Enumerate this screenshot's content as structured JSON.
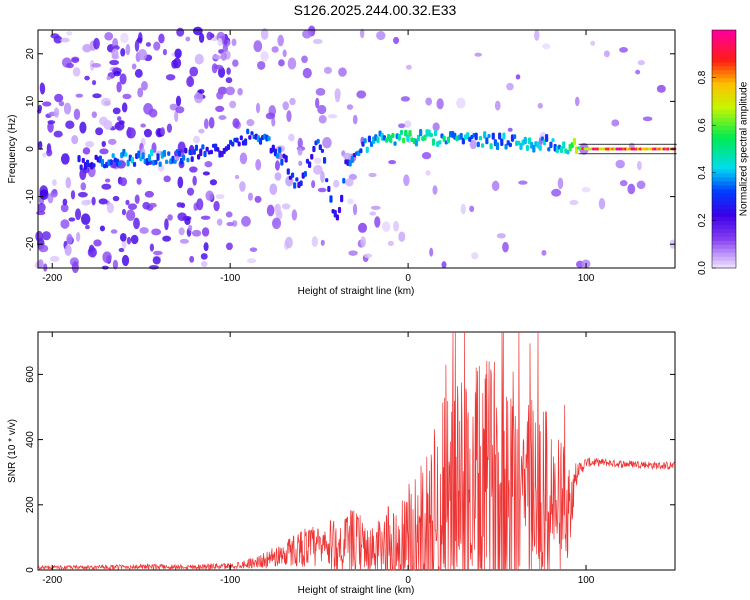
{
  "title": "S126.2025.244.00.32.E33",
  "chart_data": [
    {
      "type": "heatmap",
      "name": "spectrogram",
      "xlabel": "Height of straight line (km)",
      "ylabel": "Frequency (Hz)",
      "xlim": [
        -208,
        150
      ],
      "ylim": [
        -25,
        25
      ],
      "xticks": [
        -200,
        -100,
        0,
        100
      ],
      "yticks": [
        -20,
        -10,
        0,
        10,
        20
      ],
      "colorbar": {
        "label": "Normalized spectral amplitude",
        "range": [
          0.0,
          1.0
        ],
        "ticks": [
          0.0,
          0.2,
          0.4,
          0.6,
          0.8
        ]
      },
      "ridge": [
        {
          "x": -180,
          "f": -3,
          "a": 0.3
        },
        {
          "x": -160,
          "f": -2,
          "a": 0.4
        },
        {
          "x": -140,
          "f": -2,
          "a": 0.35
        },
        {
          "x": -120,
          "f": -1,
          "a": 0.3
        },
        {
          "x": -105,
          "f": 0,
          "a": 0.25
        },
        {
          "x": -90,
          "f": 3,
          "a": 0.3
        },
        {
          "x": -80,
          "f": 2,
          "a": 0.35
        },
        {
          "x": -70,
          "f": -2,
          "a": 0.3
        },
        {
          "x": -62,
          "f": -8,
          "a": 0.3
        },
        {
          "x": -50,
          "f": 2,
          "a": 0.3
        },
        {
          "x": -40,
          "f": -16,
          "a": 0.25
        },
        {
          "x": -35,
          "f": -3,
          "a": 0.3
        },
        {
          "x": -20,
          "f": 2,
          "a": 0.4
        },
        {
          "x": 0,
          "f": 2.5,
          "a": 0.55
        },
        {
          "x": 20,
          "f": 2,
          "a": 0.45
        },
        {
          "x": 40,
          "f": 2,
          "a": 0.4
        },
        {
          "x": 60,
          "f": 1.5,
          "a": 0.4
        },
        {
          "x": 80,
          "f": 1,
          "a": 0.4
        },
        {
          "x": 90,
          "f": 0.5,
          "a": 0.45
        },
        {
          "x": 100,
          "f": 0,
          "a": 0.85
        },
        {
          "x": 120,
          "f": 0,
          "a": 0.95
        },
        {
          "x": 150,
          "f": 0,
          "a": 0.9
        }
      ]
    },
    {
      "type": "line",
      "name": "snr",
      "xlabel": "Height of straight line (km)",
      "ylabel": "SNR (10 * v/v)",
      "xlim": [
        -208,
        150
      ],
      "ylim": [
        0,
        730
      ],
      "xticks": [
        -200,
        -100,
        0,
        100
      ],
      "yticks": [
        0,
        200,
        400,
        600
      ],
      "color": "#ee3333",
      "envelope": {
        "x": [
          -208,
          -180,
          -150,
          -120,
          -100,
          -90,
          -80,
          -70,
          -60,
          -50,
          -40,
          -30,
          -20,
          -10,
          0,
          10,
          20,
          30,
          40,
          50,
          60,
          70,
          80,
          90,
          95,
          100,
          110,
          120,
          130,
          140,
          150
        ],
        "base": [
          8,
          8,
          10,
          10,
          12,
          20,
          30,
          50,
          70,
          70,
          70,
          80,
          50,
          60,
          60,
          110,
          180,
          230,
          230,
          240,
          250,
          240,
          200,
          190,
          300,
          330,
          330,
          325,
          325,
          320,
          320
        ],
        "amp": [
          6,
          6,
          8,
          8,
          10,
          14,
          25,
          40,
          60,
          70,
          90,
          110,
          80,
          150,
          200,
          250,
          350,
          380,
          400,
          430,
          430,
          320,
          280,
          150,
          30,
          15,
          12,
          12,
          12,
          12,
          12
        ]
      }
    }
  ]
}
